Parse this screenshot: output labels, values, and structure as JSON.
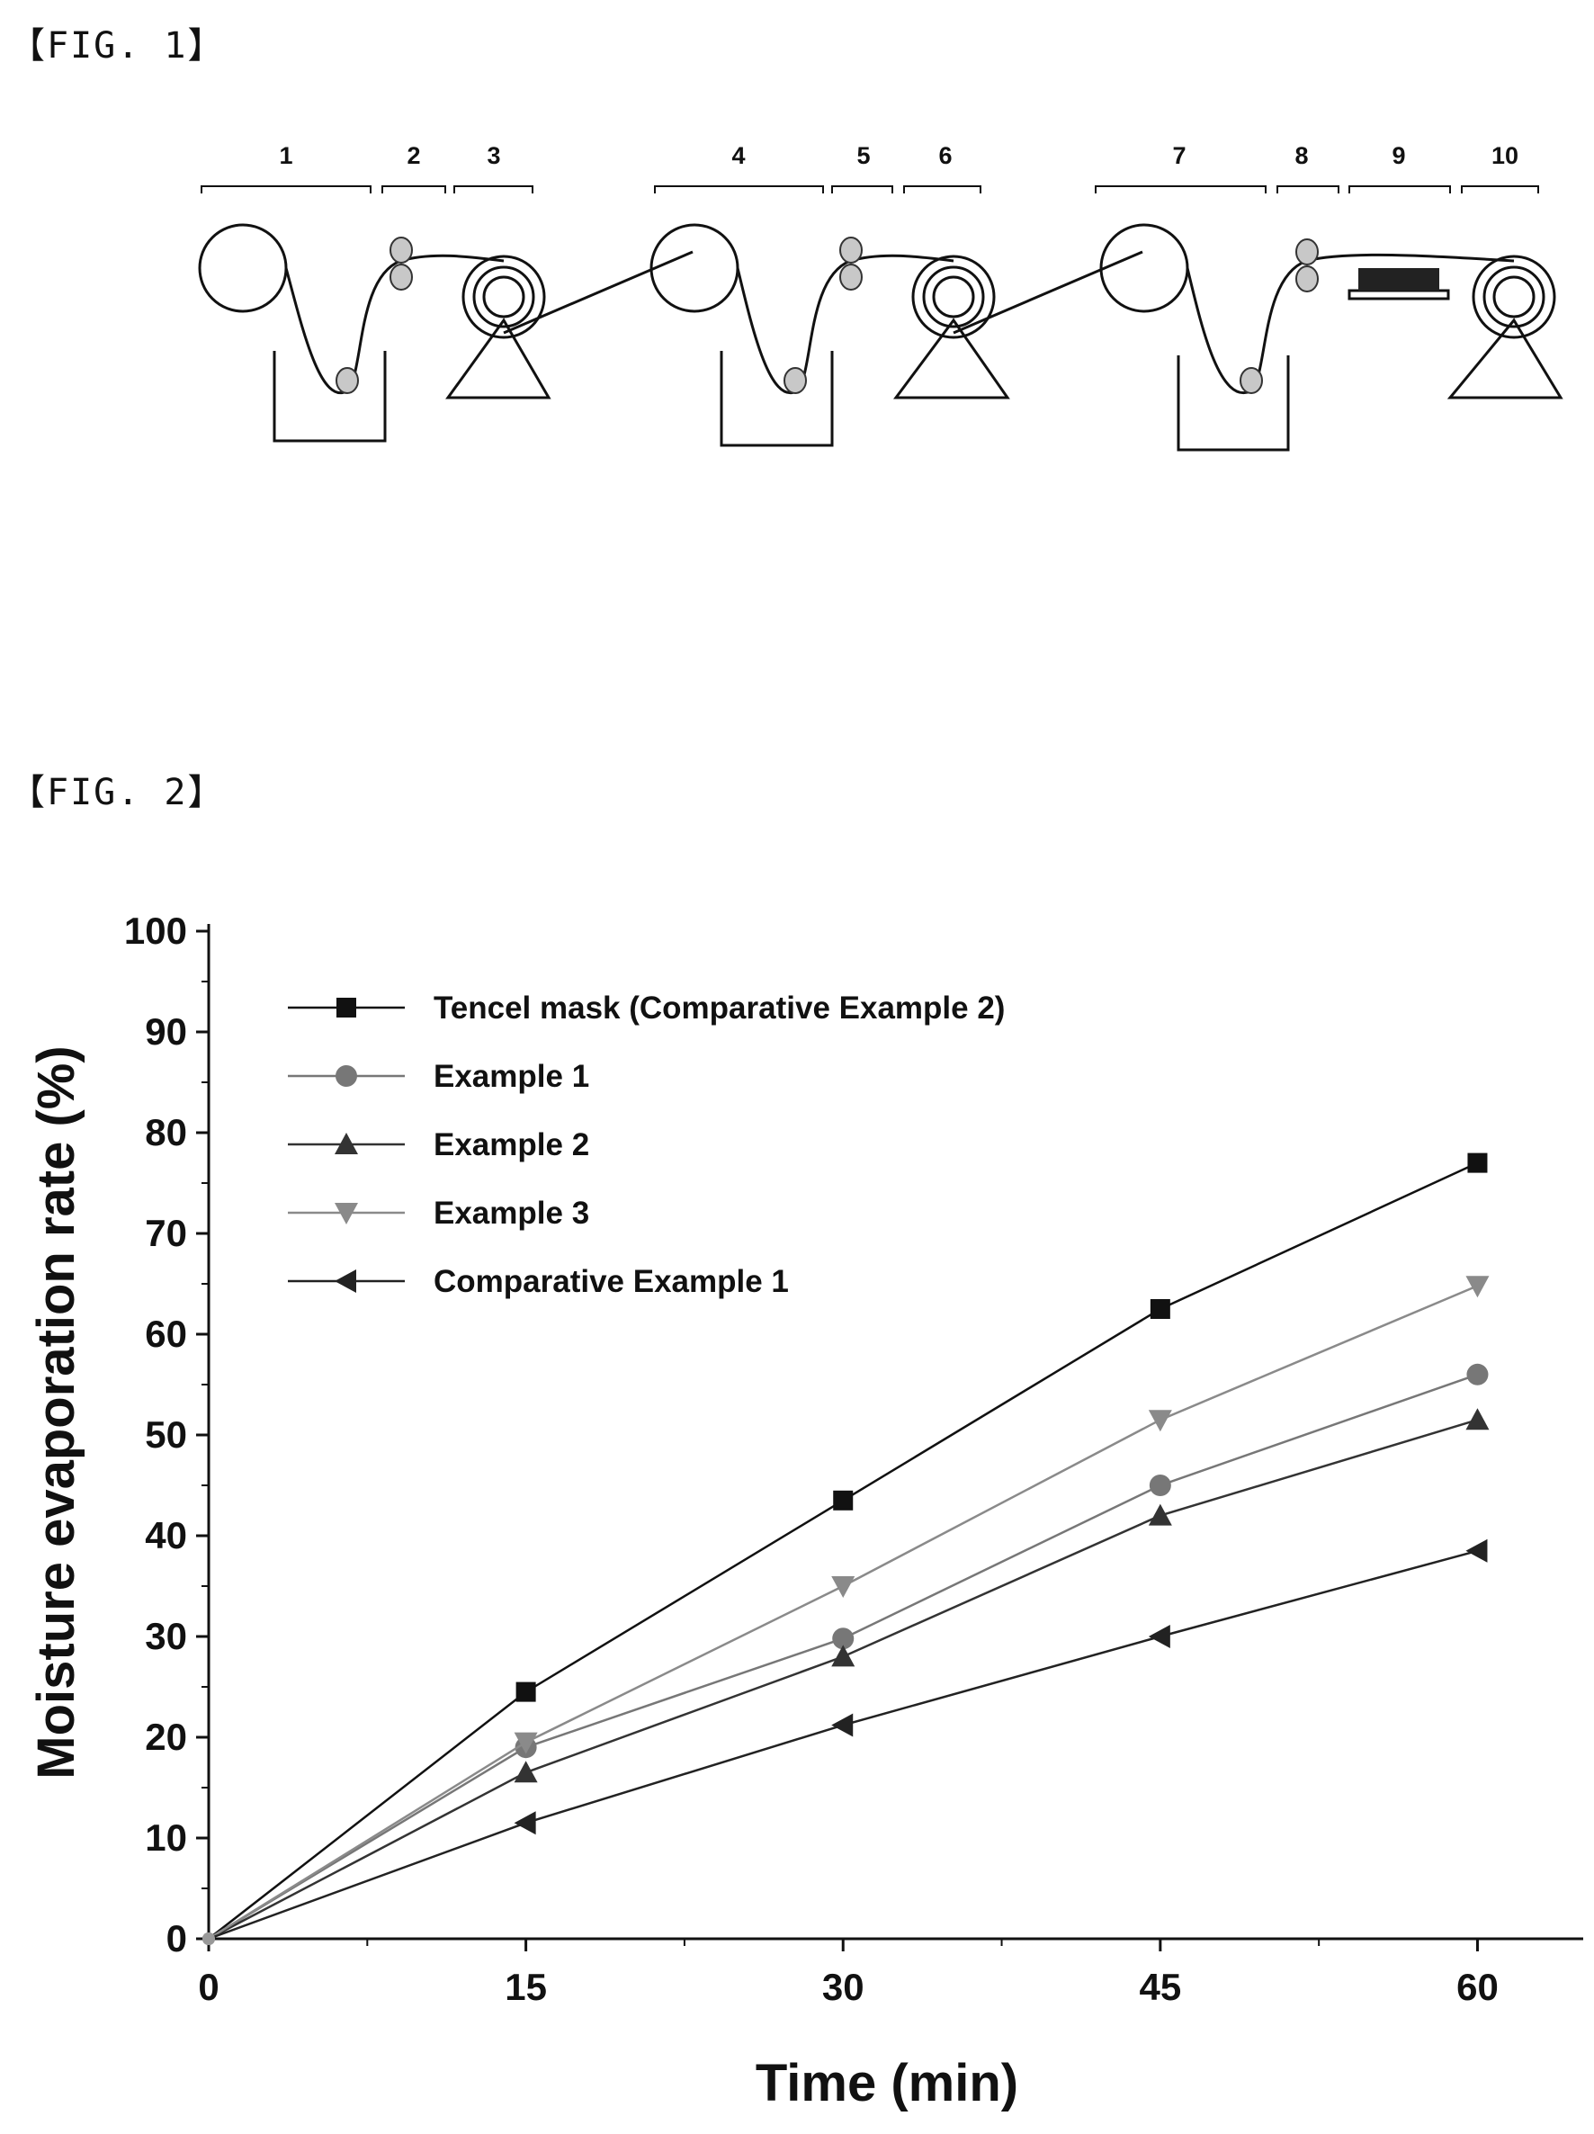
{
  "figures": {
    "fig1_label": "【FIG. 1】",
    "fig2_label": "【FIG. 2】"
  },
  "process": {
    "stages": [
      "1",
      "2",
      "3",
      "4",
      "5",
      "6",
      "7",
      "8",
      "9",
      "10"
    ]
  },
  "chart_data": {
    "type": "line",
    "title": "",
    "xlabel": "Time (min)",
    "ylabel": "Moisture evaporation rate (%)",
    "x": [
      0,
      15,
      30,
      45,
      60
    ],
    "xticks": [
      "0",
      "15",
      "30",
      "45",
      "60"
    ],
    "yticks": [
      "0",
      "10",
      "20",
      "30",
      "40",
      "50",
      "60",
      "70",
      "80",
      "90",
      "100"
    ],
    "xlim": [
      0,
      65
    ],
    "ylim": [
      0,
      100
    ],
    "grid": false,
    "legend_position": "top-left",
    "series": [
      {
        "name": "Tencel mask (Comparative Example 2)",
        "marker": "square",
        "color": "#111111",
        "values": [
          0,
          24.5,
          43.5,
          62.5,
          77
        ]
      },
      {
        "name": "Example 1",
        "marker": "circle",
        "color": "#777777",
        "values": [
          0,
          19,
          29.8,
          45,
          56
        ]
      },
      {
        "name": "Example 2",
        "marker": "triangle-up",
        "color": "#333333",
        "values": [
          0,
          16.5,
          28,
          42,
          51.5
        ]
      },
      {
        "name": "Example 3",
        "marker": "triangle-down",
        "color": "#8a8a8a",
        "values": [
          0,
          19.5,
          35,
          51.5,
          64.8
        ]
      },
      {
        "name": "Comparative Example 1",
        "marker": "triangle-left",
        "color": "#222222",
        "values": [
          0,
          11.5,
          21.2,
          30,
          38.5
        ]
      }
    ]
  }
}
